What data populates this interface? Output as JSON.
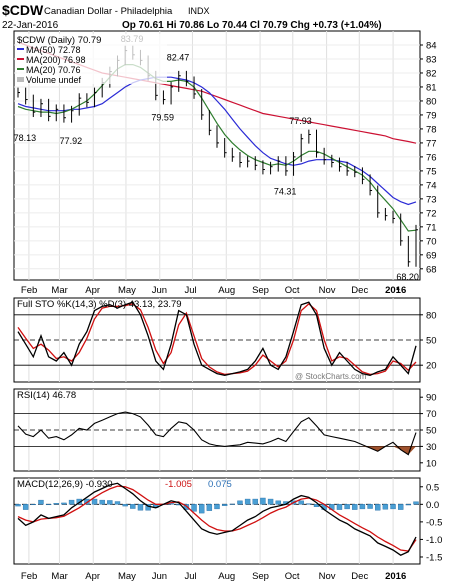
{
  "header": {
    "symbol": "$CDW",
    "name": "Canadian Dollar - Philadelphia",
    "exchange": "INDX",
    "date": "22-Jan-2016",
    "quote": "Op 70.61  Hi 70.86  Lo 70.44  Cl 70.79  Chg +0.73 (+1.04%)",
    "watermark": "@ StockCharts.com",
    "up_arrow": "▲"
  },
  "colors": {
    "price": "#000000",
    "ma50": "#2b2bd6",
    "ma200": "#cc1133",
    "ma20": "#2e7d2e",
    "k": "#000000",
    "d": "#d01010",
    "macd_hist": "#4a9fd4",
    "fill_high": "#a0a0a0",
    "fill_low": "#a0522d"
  },
  "chart_data": [
    {
      "type": "line",
      "title": "$CDW (Daily) 70.79",
      "x": [
        "2015-01-22",
        "2015-01-29",
        "2015-02-05",
        "2015-02-12",
        "2015-02-19",
        "2015-02-26",
        "2015-03-05",
        "2015-03-12",
        "2015-03-19",
        "2015-03-26",
        "2015-04-02",
        "2015-04-09",
        "2015-04-16",
        "2015-04-23",
        "2015-04-30",
        "2015-05-07",
        "2015-05-14",
        "2015-05-21",
        "2015-05-28",
        "2015-06-04",
        "2015-06-11",
        "2015-06-18",
        "2015-06-25",
        "2015-07-02",
        "2015-07-09",
        "2015-07-16",
        "2015-07-23",
        "2015-07-30",
        "2015-08-06",
        "2015-08-13",
        "2015-08-20",
        "2015-08-27",
        "2015-09-03",
        "2015-09-10",
        "2015-09-17",
        "2015-09-24",
        "2015-10-01",
        "2015-10-08",
        "2015-10-15",
        "2015-10-22",
        "2015-10-29",
        "2015-11-05",
        "2015-11-12",
        "2015-11-19",
        "2015-11-26",
        "2015-12-03",
        "2015-12-10",
        "2015-12-17",
        "2015-12-24",
        "2015-12-31",
        "2016-01-07",
        "2016-01-14",
        "2016-01-22"
      ],
      "x_tick_labels": [
        "Feb",
        "Mar",
        "Apr",
        "May",
        "Jun",
        "Jul",
        "Aug",
        "Sep",
        "Oct",
        "Nov",
        "Dec",
        "2016"
      ],
      "ylim": [
        67.2,
        85.0
      ],
      "y_ticks": [
        68,
        69,
        70,
        71,
        72,
        73,
        74,
        75,
        76,
        77,
        78,
        79,
        80,
        81,
        82,
        83,
        84
      ],
      "series": [
        {
          "name": "$CDW (Daily) 70.79",
          "values": [
            80.6,
            80.1,
            79.2,
            79.8,
            78.9,
            79.4,
            78.8,
            79.3,
            80.2,
            79.9,
            80.6,
            81.3,
            82.1,
            82.9,
            83.6,
            83.3,
            82.9,
            81.8,
            80.4,
            80.1,
            81.0,
            81.8,
            81.4,
            80.5,
            79.0,
            77.9,
            77.0,
            76.3,
            76.0,
            75.6,
            75.7,
            75.4,
            75.1,
            75.3,
            75.7,
            75.0,
            76.0,
            77.3,
            77.6,
            76.3,
            75.8,
            75.6,
            75.3,
            75.0,
            74.9,
            74.4,
            73.6,
            72.0,
            71.8,
            71.6,
            70.0,
            68.5,
            70.79
          ]
        },
        {
          "name": "MA(50) 72.78",
          "values": [
            79.8,
            79.6,
            79.5,
            79.4,
            79.3,
            79.3,
            79.3,
            79.4,
            79.4,
            79.5,
            79.6,
            79.8,
            80.2,
            80.6,
            81.0,
            81.3,
            81.5,
            81.6,
            81.7,
            81.7,
            81.7,
            81.6,
            81.5,
            81.3,
            81.0,
            80.6,
            80.0,
            79.4,
            78.7,
            78.0,
            77.4,
            76.8,
            76.3,
            75.9,
            75.7,
            75.5,
            75.4,
            75.5,
            75.7,
            75.8,
            75.8,
            75.8,
            75.7,
            75.6,
            75.3,
            75.0,
            74.6,
            74.1,
            73.6,
            73.1,
            72.8,
            72.6,
            72.78
          ]
        },
        {
          "name": "MA(200) 76.98",
          "values": [
            84.2,
            84.0,
            83.8,
            83.6,
            83.4,
            83.2,
            83.0,
            82.8,
            82.6,
            82.4,
            82.2,
            82.0,
            81.9,
            81.8,
            81.7,
            81.6,
            81.5,
            81.4,
            81.3,
            81.2,
            81.1,
            81.0,
            80.9,
            80.8,
            80.7,
            80.5,
            80.3,
            80.1,
            79.9,
            79.7,
            79.5,
            79.3,
            79.1,
            79.0,
            78.9,
            78.8,
            78.7,
            78.6,
            78.5,
            78.4,
            78.3,
            78.2,
            78.1,
            78.0,
            77.9,
            77.8,
            77.7,
            77.6,
            77.5,
            77.3,
            77.2,
            77.1,
            76.98
          ]
        },
        {
          "name": "MA(20) 70.76",
          "values": [
            79.6,
            79.4,
            79.3,
            79.2,
            79.2,
            79.1,
            79.2,
            79.4,
            79.7,
            80.0,
            80.5,
            81.1,
            81.7,
            82.3,
            82.6,
            82.6,
            82.4,
            82.0,
            81.6,
            81.4,
            81.4,
            81.5,
            81.4,
            81.0,
            80.2,
            79.3,
            78.4,
            77.6,
            77.0,
            76.5,
            76.1,
            75.8,
            75.6,
            75.4,
            75.5,
            75.4,
            75.7,
            76.1,
            76.4,
            76.4,
            76.2,
            75.9,
            75.6,
            75.3,
            75.0,
            74.7,
            74.2,
            73.5,
            72.9,
            72.3,
            71.5,
            70.7,
            70.76
          ]
        }
      ],
      "annotations": [
        {
          "text": "78.13",
          "x": "2015-01-29",
          "y": 78.13
        },
        {
          "text": "77.92",
          "x": "2015-03-12",
          "y": 77.92
        },
        {
          "text": "83.79",
          "x": "2015-05-07",
          "y": 83.79
        },
        {
          "text": "79.59",
          "x": "2015-06-04",
          "y": 79.59
        },
        {
          "text": "82.47",
          "x": "2015-06-18",
          "y": 82.47
        },
        {
          "text": "77.93",
          "x": "2015-10-08",
          "y": 77.93
        },
        {
          "text": "74.31",
          "x": "2015-09-24",
          "y": 74.31
        },
        {
          "text": "68.20",
          "x": "2016-01-14",
          "y": 68.2
        }
      ],
      "legend_placement": "top-left",
      "legend": [
        "$CDW (Daily) 70.79",
        "MA(50) 72.78",
        "MA(200) 76.98",
        "MA(20) 70.76",
        "Volume undef"
      ],
      "grid": true
    },
    {
      "type": "line",
      "title": "Full STO %K(14,3) %D(3) 43.13, 23.79",
      "ylim": [
        0,
        100
      ],
      "y_ticks": [
        20,
        50,
        80
      ],
      "reference_lines": [
        20,
        50,
        80
      ],
      "series": [
        {
          "name": "%K(14,3) 43.13",
          "values": [
            60,
            45,
            30,
            55,
            30,
            25,
            35,
            20,
            45,
            60,
            85,
            90,
            92,
            88,
            92,
            95,
            80,
            55,
            25,
            15,
            45,
            85,
            80,
            45,
            20,
            15,
            10,
            8,
            10,
            12,
            15,
            25,
            40,
            20,
            15,
            30,
            60,
            92,
            95,
            80,
            40,
            20,
            35,
            25,
            15,
            10,
            8,
            12,
            15,
            30,
            20,
            10,
            43.13
          ]
        },
        {
          "name": "%D(3) 23.79",
          "values": [
            65,
            52,
            40,
            45,
            38,
            28,
            30,
            25,
            35,
            52,
            75,
            88,
            90,
            90,
            91,
            93,
            86,
            65,
            38,
            22,
            35,
            68,
            82,
            55,
            28,
            18,
            12,
            9,
            10,
            11,
            13,
            20,
            32,
            25,
            18,
            25,
            50,
            85,
            93,
            85,
            50,
            25,
            30,
            28,
            20,
            12,
            9,
            10,
            13,
            25,
            22,
            14,
            23.79
          ]
        }
      ],
      "grid": true
    },
    {
      "type": "area",
      "title": "RSI(14) 46.78",
      "ylim": [
        0,
        100
      ],
      "y_ticks": [
        10,
        30,
        50,
        70,
        90
      ],
      "reference_lines": [
        30,
        50,
        70
      ],
      "series": [
        {
          "name": "RSI(14) 46.78",
          "values": [
            55,
            45,
            42,
            50,
            40,
            42,
            38,
            44,
            52,
            50,
            58,
            62,
            66,
            70,
            72,
            70,
            66,
            56,
            44,
            42,
            52,
            60,
            58,
            50,
            38,
            33,
            31,
            30,
            31,
            32,
            35,
            34,
            33,
            36,
            40,
            36,
            48,
            60,
            65,
            55,
            44,
            42,
            40,
            38,
            36,
            32,
            28,
            24,
            30,
            35,
            26,
            20,
            46.78
          ]
        }
      ],
      "grid": true
    },
    {
      "type": "line",
      "title": "MACD(12,26,9) -0.930, -1.005, 0.075",
      "ylim": [
        -1.7,
        0.75
      ],
      "y_ticks": [
        -1.5,
        -1.0,
        -0.5,
        0.0,
        0.5
      ],
      "series": [
        {
          "name": "MACD(12,26,9) -0.930",
          "values": [
            -0.4,
            -0.6,
            -0.5,
            -0.3,
            -0.4,
            -0.35,
            -0.3,
            -0.1,
            0.05,
            0.2,
            0.35,
            0.45,
            0.55,
            0.6,
            0.45,
            0.3,
            0.1,
            -0.05,
            -0.1,
            0.0,
            0.1,
            0.05,
            -0.2,
            -0.45,
            -0.7,
            -0.8,
            -0.85,
            -0.8,
            -0.75,
            -0.6,
            -0.45,
            -0.35,
            -0.2,
            -0.1,
            -0.05,
            0.0,
            0.15,
            0.25,
            0.2,
            0.05,
            -0.15,
            -0.3,
            -0.45,
            -0.55,
            -0.7,
            -0.8,
            -0.9,
            -1.1,
            -1.2,
            -1.3,
            -1.45,
            -1.35,
            -0.93
          ]
        },
        {
          "name": "-1.005",
          "values": [
            -0.35,
            -0.45,
            -0.5,
            -0.42,
            -0.4,
            -0.38,
            -0.34,
            -0.22,
            -0.1,
            0.05,
            0.2,
            0.33,
            0.44,
            0.52,
            0.5,
            0.42,
            0.27,
            0.12,
            0.0,
            0.0,
            0.05,
            0.07,
            -0.05,
            -0.25,
            -0.45,
            -0.62,
            -0.72,
            -0.76,
            -0.76,
            -0.7,
            -0.6,
            -0.5,
            -0.38,
            -0.25,
            -0.15,
            -0.08,
            0.05,
            0.15,
            0.18,
            0.12,
            0.0,
            -0.15,
            -0.3,
            -0.42,
            -0.55,
            -0.67,
            -0.78,
            -0.93,
            -1.06,
            -1.17,
            -1.3,
            -1.33,
            -1.005
          ]
        },
        {
          "name": "0.075",
          "values": [
            -0.05,
            -0.15,
            0.0,
            0.12,
            0.0,
            0.03,
            0.04,
            0.12,
            0.15,
            0.15,
            0.15,
            0.12,
            0.11,
            0.08,
            -0.05,
            -0.12,
            -0.17,
            -0.17,
            -0.1,
            0.0,
            0.05,
            -0.02,
            -0.15,
            -0.2,
            -0.25,
            -0.18,
            -0.13,
            -0.04,
            0.01,
            0.1,
            0.15,
            0.15,
            0.18,
            0.15,
            0.1,
            0.08,
            0.1,
            0.1,
            0.02,
            -0.07,
            -0.15,
            -0.15,
            -0.15,
            -0.13,
            -0.15,
            -0.13,
            -0.12,
            -0.17,
            -0.14,
            -0.13,
            -0.15,
            -0.02,
            0.075
          ]
        }
      ],
      "grid": true
    }
  ]
}
